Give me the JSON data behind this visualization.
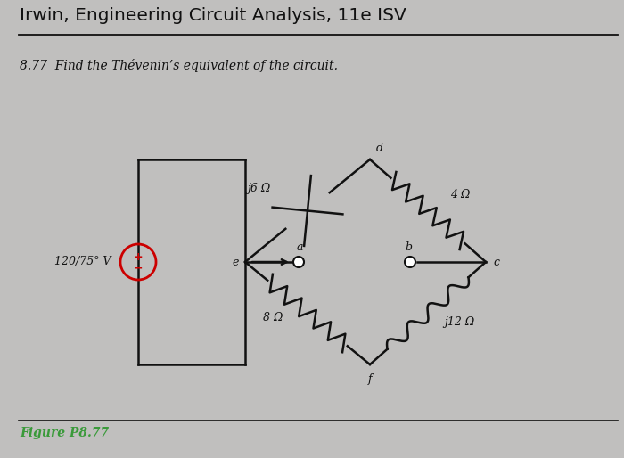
{
  "title": "Irwin, Engineering Circuit Analysis, 11e ISV",
  "problem_text": "8.77  Find the Thévenin’s equivalent of the circuit.",
  "figure_caption": "Figure P8.77",
  "bg_color": "#c0bfbe",
  "title_color": "#111111",
  "caption_color": "#3a9a3a",
  "vs_label": "120/75° V",
  "j6_label": "j6 Ω",
  "r4_label": "4 Ω",
  "r8_label": "8 Ω",
  "j12_label": "j12 Ω",
  "node_d": "d",
  "node_a": "a",
  "node_b": "b",
  "node_c": "c",
  "node_e": "e",
  "node_f": "f"
}
